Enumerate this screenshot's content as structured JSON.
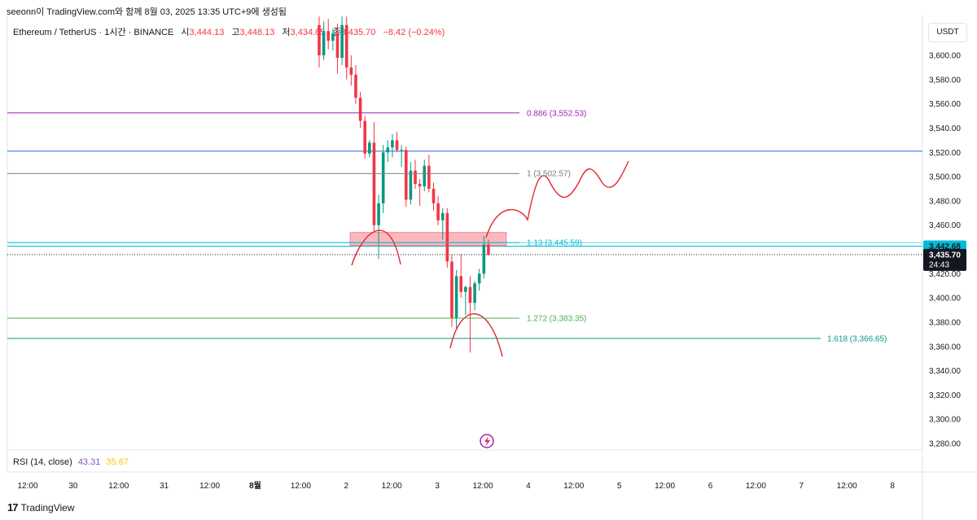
{
  "header": {
    "note": "seeonn이 TradingView.com와 함께 8월 03, 2025 13:35 UTC+9에 생성됨"
  },
  "legend": {
    "symbol": "Ethereum / TetherUS · 1시간 · BINANCE",
    "open_label": "시",
    "open": "3,444.13",
    "high_label": "고",
    "high": "3,448.13",
    "low_label": "저",
    "low": "3,434.85",
    "close_label": "종",
    "close": "3,435.70",
    "change": "−8.42 (−0.24%)"
  },
  "currency": "USDT",
  "rsi": {
    "label": "RSI (14, close)",
    "value1": "43.31",
    "value2": "35.67"
  },
  "footer": {
    "brand": "TradingView",
    "logo": "17"
  },
  "colors": {
    "up": "#089981",
    "down": "#f23645",
    "fib_0886": "#9c27b0",
    "fib_1": "#787b86",
    "fib_113": "#00bcd4",
    "fib_1272": "#4caf50",
    "fib_1618": "#089981",
    "blue_line": "#2962ff",
    "zone": "#f23645",
    "drawing": "#e0282e"
  },
  "chart_data": {
    "type": "candlestick",
    "y_axis": {
      "range": [
        3270,
        3630
      ],
      "ticks": [
        "3,600.00",
        "3,580.00",
        "3,560.00",
        "3,540.00",
        "3,520.00",
        "3,500.00",
        "3,480.00",
        "3,460.00",
        "3,440.00",
        "3,420.00",
        "3,400.00",
        "3,380.00",
        "3,360.00",
        "3,340.00",
        "3,320.00",
        "3,300.00",
        "3,280.00"
      ],
      "tick_values": [
        3600,
        3580,
        3560,
        3540,
        3520,
        3500,
        3480,
        3460,
        3440,
        3420,
        3400,
        3380,
        3360,
        3340,
        3320,
        3300,
        3280
      ]
    },
    "x_axis": {
      "labels": [
        "12:00",
        "30",
        "12:00",
        "31",
        "12:00",
        "8월",
        "12:00",
        "2",
        "12:00",
        "3",
        "12:00",
        "4",
        "12:00",
        "5",
        "12:00",
        "6",
        "12:00",
        "7",
        "12:00",
        "8"
      ],
      "bold": [
        "8월"
      ]
    },
    "fib_levels": [
      {
        "label": "0.886 (3,552.53)",
        "value": 3552.53,
        "color": "#9c27b0"
      },
      {
        "label": "1 (3,502.57)",
        "value": 3502.57,
        "color": "#787b86"
      },
      {
        "label": "1.13 (3,445.59)",
        "value": 3445.59,
        "color": "#00bcd4"
      },
      {
        "label": "1.272 (3,383.35)",
        "value": 3383.35,
        "color": "#4caf50"
      },
      {
        "label": "1.618 (3,366.65)",
        "value": 3366.65,
        "color": "#089981"
      }
    ],
    "horizontal_lines": [
      {
        "value": 3521,
        "color": "#2962ff"
      },
      {
        "value": 3442.68,
        "color": "#00bcd4"
      }
    ],
    "price_badges": [
      {
        "value": 3442.68,
        "text": "3,442.68",
        "bg": "#00bcd4"
      },
      {
        "value": 3435.7,
        "text": "3,435.70",
        "countdown": "24:43",
        "bg": "#131722"
      }
    ],
    "zone": {
      "from": 3443,
      "to": 3454
    },
    "candles": [
      {
        "o": 3625,
        "h": 3632,
        "l": 3590,
        "c": 3600
      },
      {
        "o": 3600,
        "h": 3628,
        "l": 3596,
        "c": 3620
      },
      {
        "o": 3620,
        "h": 3630,
        "l": 3605,
        "c": 3612
      },
      {
        "o": 3612,
        "h": 3622,
        "l": 3604,
        "c": 3618
      },
      {
        "o": 3618,
        "h": 3626,
        "l": 3585,
        "c": 3598
      },
      {
        "o": 3598,
        "h": 3632,
        "l": 3592,
        "c": 3625
      },
      {
        "o": 3625,
        "h": 3632,
        "l": 3580,
        "c": 3590
      },
      {
        "o": 3590,
        "h": 3600,
        "l": 3575,
        "c": 3584
      },
      {
        "o": 3584,
        "h": 3592,
        "l": 3560,
        "c": 3565
      },
      {
        "o": 3565,
        "h": 3570,
        "l": 3540,
        "c": 3546
      },
      {
        "o": 3546,
        "h": 3550,
        "l": 3515,
        "c": 3519
      },
      {
        "o": 3519,
        "h": 3530,
        "l": 3516,
        "c": 3528
      },
      {
        "o": 3528,
        "h": 3545,
        "l": 3455,
        "c": 3460
      },
      {
        "o": 3460,
        "h": 3485,
        "l": 3432,
        "c": 3478
      },
      {
        "o": 3478,
        "h": 3526,
        "l": 3470,
        "c": 3520
      },
      {
        "o": 3520,
        "h": 3530,
        "l": 3512,
        "c": 3524
      },
      {
        "o": 3524,
        "h": 3535,
        "l": 3516,
        "c": 3530
      },
      {
        "o": 3530,
        "h": 3537,
        "l": 3520,
        "c": 3522
      },
      {
        "o": 3522,
        "h": 3526,
        "l": 3508,
        "c": 3522
      },
      {
        "o": 3522,
        "h": 3525,
        "l": 3475,
        "c": 3481
      },
      {
        "o": 3481,
        "h": 3512,
        "l": 3477,
        "c": 3505
      },
      {
        "o": 3505,
        "h": 3514,
        "l": 3490,
        "c": 3494
      },
      {
        "o": 3494,
        "h": 3498,
        "l": 3476,
        "c": 3492
      },
      {
        "o": 3492,
        "h": 3514,
        "l": 3488,
        "c": 3509
      },
      {
        "o": 3509,
        "h": 3518,
        "l": 3487,
        "c": 3490
      },
      {
        "o": 3490,
        "h": 3495,
        "l": 3472,
        "c": 3478
      },
      {
        "o": 3478,
        "h": 3484,
        "l": 3460,
        "c": 3464
      },
      {
        "o": 3464,
        "h": 3474,
        "l": 3448,
        "c": 3470
      },
      {
        "o": 3470,
        "h": 3474,
        "l": 3425,
        "c": 3430
      },
      {
        "o": 3430,
        "h": 3436,
        "l": 3376,
        "c": 3383
      },
      {
        "o": 3383,
        "h": 3423,
        "l": 3375,
        "c": 3418
      },
      {
        "o": 3418,
        "h": 3436,
        "l": 3400,
        "c": 3405
      },
      {
        "o": 3405,
        "h": 3410,
        "l": 3386,
        "c": 3409
      },
      {
        "o": 3409,
        "h": 3418,
        "l": 3355,
        "c": 3396
      },
      {
        "o": 3396,
        "h": 3414,
        "l": 3390,
        "c": 3412
      },
      {
        "o": 3412,
        "h": 3424,
        "l": 3406,
        "c": 3420
      },
      {
        "o": 3420,
        "h": 3451,
        "l": 3416,
        "c": 3444
      },
      {
        "o": 3444.13,
        "h": 3448.13,
        "l": 3434.85,
        "c": 3435.7
      }
    ]
  }
}
